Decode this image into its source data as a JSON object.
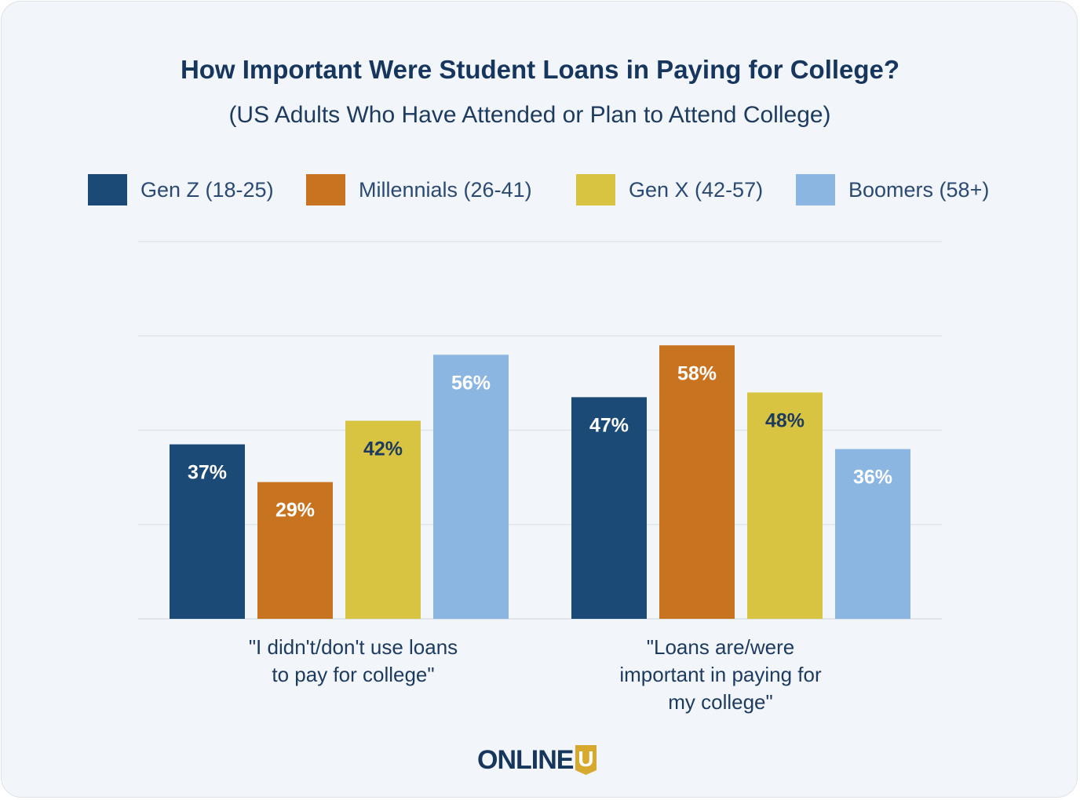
{
  "header": {
    "title": "How Important Were Student Loans in Paying for College?",
    "subtitle": "(US Adults Who Have Attended or Plan to Attend College)"
  },
  "legend": [
    {
      "label": "Gen Z (18-25)",
      "color": "#1a4a75"
    },
    {
      "label": "Millennials (26-41)",
      "color": "#c8731f"
    },
    {
      "label": "Gen X (42-57)",
      "color": "#d8c441"
    },
    {
      "label": "Boomers (58+)",
      "color": "#8bb6e2"
    }
  ],
  "chart_data": {
    "type": "bar",
    "title": "How Important Were Student Loans in Paying for College?",
    "subtitle": "(US Adults Who Have Attended or Plan to Attend College)",
    "categories": [
      "\"I didn't/don't use loans to pay for college\"",
      "\"Loans are/were important in paying for my college\""
    ],
    "category_lines": [
      [
        "\"I didn't/don't use loans",
        "to pay for college\""
      ],
      [
        "\"Loans are/were",
        "important in paying for",
        "my college\""
      ]
    ],
    "series": [
      {
        "name": "Gen Z (18-25)",
        "values": [
          37,
          47
        ],
        "color": "#1a4a75",
        "label_color": "#ffffff"
      },
      {
        "name": "Millennials (26-41)",
        "values": [
          29,
          58
        ],
        "color": "#c8731f",
        "label_color": "#ffffff"
      },
      {
        "name": "Gen X (42-57)",
        "values": [
          42,
          48
        ],
        "color": "#d8c441",
        "label_color": "#1d3a5f"
      },
      {
        "name": "Boomers (58+)",
        "values": [
          56,
          36
        ],
        "color": "#8bb6e2",
        "label_color": "#ffffff"
      }
    ],
    "value_suffix": "%",
    "ylim": [
      0,
      80
    ],
    "grid": true,
    "legend_position": "top"
  },
  "branding": {
    "logo_text": "ONLINE",
    "logo_badge": "U",
    "logo_color": "#17365d",
    "badge_color": "#d8a92f"
  }
}
